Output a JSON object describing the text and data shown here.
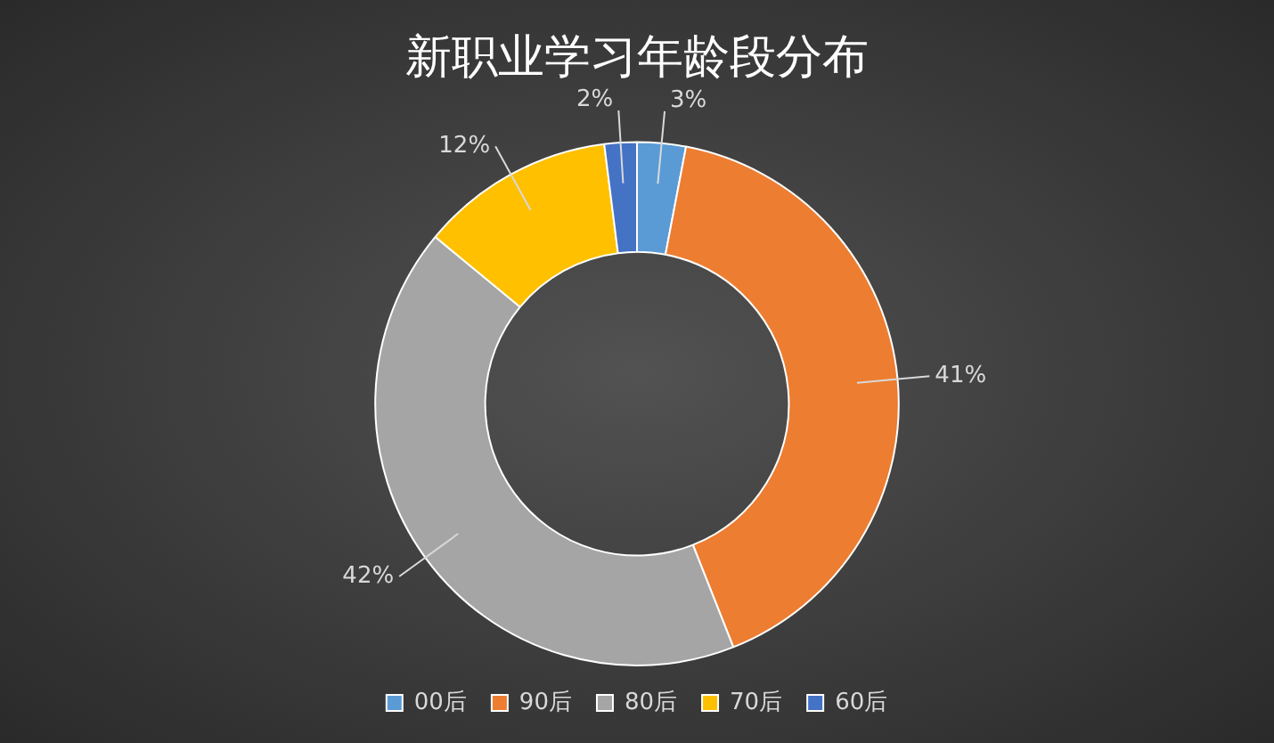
{
  "chart_data": {
    "type": "donut",
    "title": "新职业学习年龄段分布",
    "categories": [
      "00后",
      "90后",
      "80后",
      "70后",
      "60后"
    ],
    "values": [
      3,
      41,
      42,
      12,
      2
    ],
    "value_labels": [
      "3%",
      "41%",
      "42%",
      "12%",
      "2%"
    ],
    "colors": [
      "#5b9bd5",
      "#ed7d31",
      "#a5a5a5",
      "#ffc000",
      "#4472c4"
    ],
    "legend": "bottom"
  }
}
